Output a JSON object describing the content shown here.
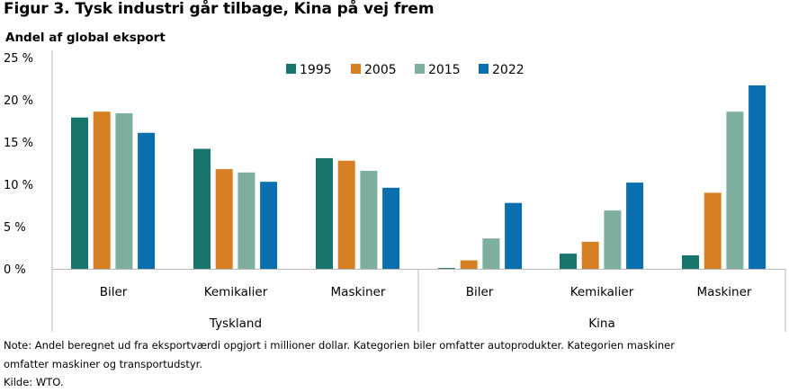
{
  "title": "Figur 3. Tysk industri går tilbage, Kina på vej frem",
  "subtitle": "Andel af global eksport",
  "note_line1": "Note: Andel beregnet ud fra eksportværdi opgjort i millioner dollar. Kategorien biler omfatter autoprodukter. Kategorien maskiner",
  "note_line2": "omfatter maskiner og transportudstyr.",
  "source": "Kilde: WTO.",
  "chart_data": {
    "type": "bar",
    "ylabel": "Andel af global eksport",
    "ylim": [
      0,
      25
    ],
    "yticks": [
      0,
      5,
      10,
      15,
      20,
      25
    ],
    "ytick_labels": [
      "0 %",
      "5 %",
      "10 %",
      "15 %",
      "20 %",
      "25 %"
    ],
    "grid": false,
    "legend_position": "top-center",
    "groups": [
      {
        "name": "Tyskland",
        "categories": [
          "Biler",
          "Kemikalier",
          "Maskiner"
        ]
      },
      {
        "name": "Kina",
        "categories": [
          "Biler",
          "Kemikalier",
          "Maskiner"
        ]
      }
    ],
    "series": [
      {
        "name": "1995",
        "color": "#17756b",
        "values": [
          17.9,
          14.2,
          13.1,
          0.1,
          1.8,
          1.6
        ]
      },
      {
        "name": "2005",
        "color": "#d68023",
        "values": [
          18.6,
          11.8,
          12.8,
          1.0,
          3.2,
          9.0
        ]
      },
      {
        "name": "2015",
        "color": "#7eaea0",
        "values": [
          18.4,
          11.4,
          11.6,
          3.6,
          6.9,
          18.6
        ]
      },
      {
        "name": "2022",
        "color": "#0a6fae",
        "values": [
          16.1,
          10.3,
          9.6,
          7.8,
          10.2,
          21.7
        ]
      }
    ]
  }
}
